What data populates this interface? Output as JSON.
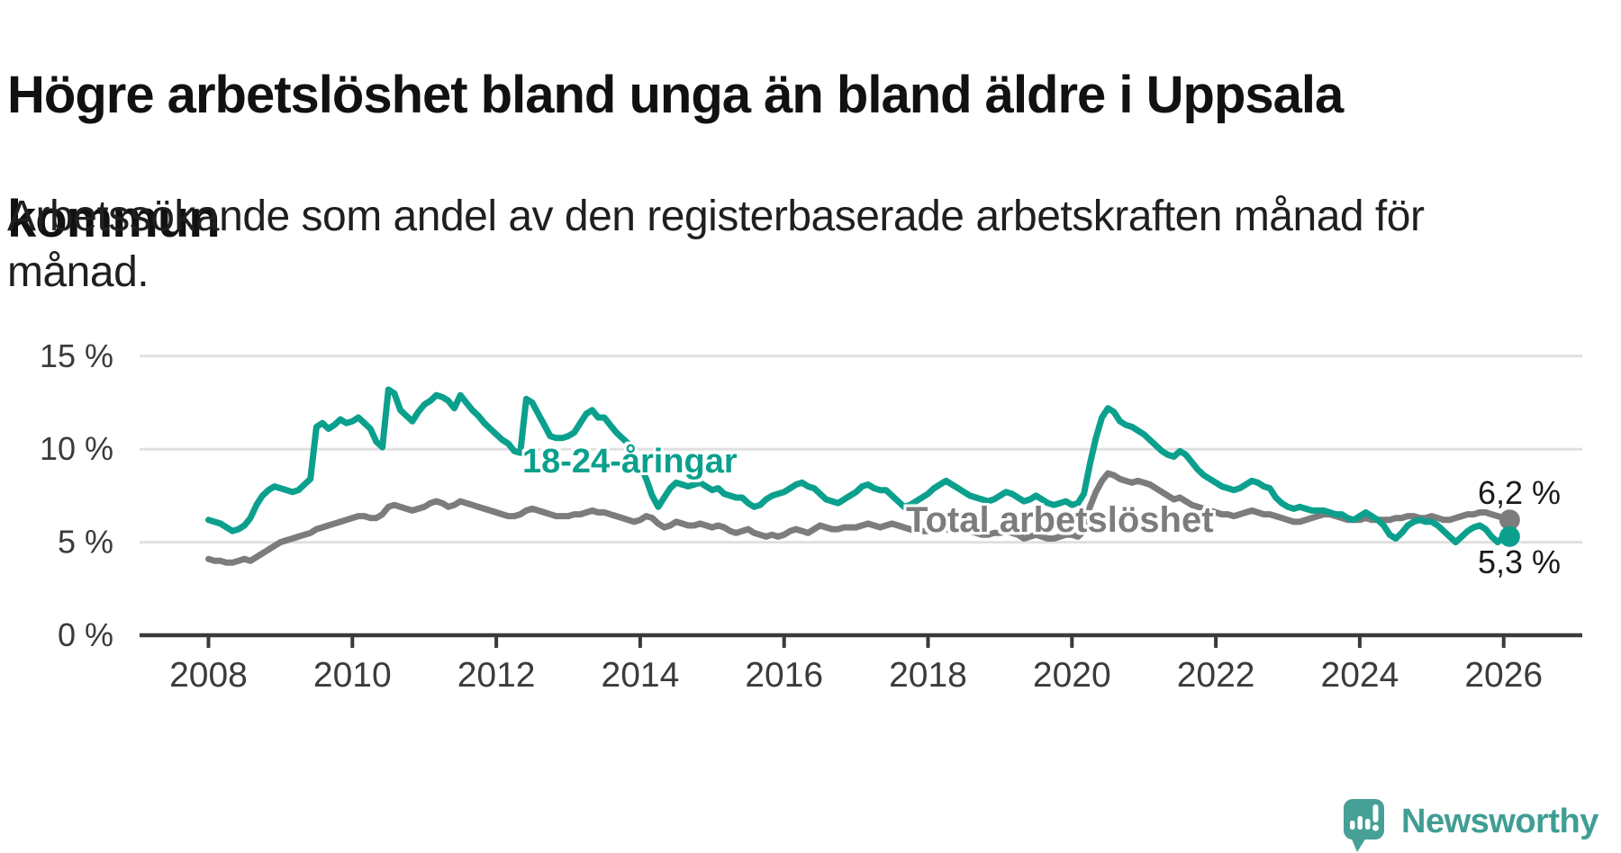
{
  "page": {
    "title_lines": [
      "Högre arbetslöshet bland unga än bland äldre i Uppsala",
      "kommun"
    ],
    "subtitle_lines": [
      "Arbetssökande som andel av den registerbaserade arbetskraften månad för",
      "månad."
    ]
  },
  "chart_data": {
    "type": "line",
    "x_unit": "month",
    "x_start": "2008-01",
    "x_end": "2026-02",
    "ylim": [
      0,
      16
    ],
    "grid": "horizontal",
    "legend_position": "inline-labels",
    "y_ticks": [
      {
        "value": 0,
        "label": "0 %"
      },
      {
        "value": 5,
        "label": "5 %"
      },
      {
        "value": 10,
        "label": "10 %"
      },
      {
        "value": 15,
        "label": "15 %"
      }
    ],
    "x_ticks": [
      {
        "value": 2008,
        "label": "2008"
      },
      {
        "value": 2010,
        "label": "2010"
      },
      {
        "value": 2012,
        "label": "2012"
      },
      {
        "value": 2014,
        "label": "2014"
      },
      {
        "value": 2016,
        "label": "2016"
      },
      {
        "value": 2018,
        "label": "2018"
      },
      {
        "value": 2020,
        "label": "2020"
      },
      {
        "value": 2022,
        "label": "2022"
      },
      {
        "value": 2024,
        "label": "2024"
      },
      {
        "value": 2026,
        "label": "2026"
      }
    ],
    "series": [
      {
        "name": "Total arbetslöshet",
        "color": "#7c7c7c",
        "end_value_label": "6,2 %",
        "values": [
          4.1,
          4.0,
          4.0,
          3.9,
          3.9,
          4.0,
          4.1,
          4.0,
          4.2,
          4.4,
          4.6,
          4.8,
          5.0,
          5.1,
          5.2,
          5.3,
          5.4,
          5.5,
          5.7,
          5.8,
          5.9,
          6.0,
          6.1,
          6.2,
          6.3,
          6.4,
          6.4,
          6.3,
          6.3,
          6.5,
          6.9,
          7.0,
          6.9,
          6.8,
          6.7,
          6.8,
          6.9,
          7.1,
          7.2,
          7.1,
          6.9,
          7.0,
          7.2,
          7.1,
          7.0,
          6.9,
          6.8,
          6.7,
          6.6,
          6.5,
          6.4,
          6.4,
          6.5,
          6.7,
          6.8,
          6.7,
          6.6,
          6.5,
          6.4,
          6.4,
          6.4,
          6.5,
          6.5,
          6.6,
          6.7,
          6.6,
          6.6,
          6.5,
          6.4,
          6.3,
          6.2,
          6.1,
          6.2,
          6.4,
          6.3,
          6.0,
          5.8,
          5.9,
          6.1,
          6.0,
          5.9,
          5.9,
          6.0,
          5.9,
          5.8,
          5.9,
          5.8,
          5.6,
          5.5,
          5.6,
          5.7,
          5.5,
          5.4,
          5.3,
          5.4,
          5.3,
          5.4,
          5.6,
          5.7,
          5.6,
          5.5,
          5.7,
          5.9,
          5.8,
          5.7,
          5.7,
          5.8,
          5.8,
          5.8,
          5.9,
          6.0,
          5.9,
          5.8,
          5.9,
          6.0,
          5.9,
          5.8,
          5.7,
          5.6,
          5.6,
          5.6,
          5.7,
          5.8,
          5.7,
          5.6,
          5.6,
          5.7,
          5.6,
          5.5,
          5.4,
          5.4,
          5.5,
          5.5,
          5.6,
          5.5,
          5.4,
          5.2,
          5.3,
          5.4,
          5.3,
          5.2,
          5.2,
          5.3,
          5.4,
          5.4,
          5.3,
          5.6,
          6.9,
          7.7,
          8.3,
          8.7,
          8.6,
          8.4,
          8.3,
          8.2,
          8.3,
          8.2,
          8.1,
          7.9,
          7.7,
          7.5,
          7.3,
          7.4,
          7.2,
          7.0,
          6.9,
          6.8,
          6.7,
          6.6,
          6.5,
          6.5,
          6.4,
          6.5,
          6.6,
          6.7,
          6.6,
          6.5,
          6.5,
          6.4,
          6.3,
          6.2,
          6.1,
          6.1,
          6.2,
          6.3,
          6.4,
          6.5,
          6.5,
          6.4,
          6.3,
          6.2,
          6.2,
          6.2,
          6.3,
          6.2,
          6.2,
          6.2,
          6.2,
          6.3,
          6.3,
          6.4,
          6.4,
          6.3,
          6.3,
          6.4,
          6.3,
          6.2,
          6.2,
          6.3,
          6.4,
          6.5,
          6.5,
          6.6,
          6.6,
          6.5,
          6.4,
          6.3,
          6.2
        ]
      },
      {
        "name": "18-24-åringar",
        "color": "#0ba08d",
        "end_value_label": "5,3 %",
        "values": [
          6.2,
          6.1,
          6.0,
          5.8,
          5.6,
          5.7,
          5.9,
          6.3,
          7.0,
          7.5,
          7.8,
          8.0,
          7.9,
          7.8,
          7.7,
          7.8,
          8.1,
          8.4,
          11.2,
          11.4,
          11.1,
          11.3,
          11.6,
          11.4,
          11.5,
          11.7,
          11.4,
          11.1,
          10.4,
          10.1,
          13.2,
          13.0,
          12.1,
          11.8,
          11.5,
          12.0,
          12.4,
          12.6,
          12.9,
          12.8,
          12.6,
          12.2,
          12.9,
          12.5,
          12.1,
          11.8,
          11.4,
          11.1,
          10.8,
          10.5,
          10.3,
          9.9,
          9.8,
          12.7,
          12.5,
          11.9,
          11.3,
          10.7,
          10.6,
          10.6,
          10.7,
          10.9,
          11.4,
          11.9,
          12.1,
          11.7,
          11.7,
          11.3,
          10.9,
          10.6,
          10.3,
          9.8,
          9.1,
          8.4,
          7.5,
          6.9,
          7.4,
          7.9,
          8.2,
          8.1,
          8.0,
          8.1,
          8.2,
          8.0,
          7.8,
          7.9,
          7.6,
          7.5,
          7.4,
          7.4,
          7.1,
          6.9,
          7.0,
          7.3,
          7.5,
          7.6,
          7.7,
          7.9,
          8.1,
          8.2,
          8.0,
          7.9,
          7.6,
          7.3,
          7.2,
          7.1,
          7.3,
          7.5,
          7.7,
          8.0,
          8.1,
          7.9,
          7.8,
          7.8,
          7.5,
          7.2,
          6.9,
          7.0,
          7.2,
          7.4,
          7.6,
          7.9,
          8.1,
          8.3,
          8.1,
          7.9,
          7.7,
          7.5,
          7.4,
          7.3,
          7.2,
          7.3,
          7.5,
          7.7,
          7.6,
          7.4,
          7.2,
          7.3,
          7.5,
          7.3,
          7.1,
          7.0,
          7.1,
          7.2,
          7.0,
          7.1,
          7.6,
          9.2,
          10.6,
          11.7,
          12.2,
          12.0,
          11.5,
          11.3,
          11.2,
          11.0,
          10.8,
          10.5,
          10.2,
          9.9,
          9.7,
          9.6,
          9.9,
          9.7,
          9.3,
          8.9,
          8.6,
          8.4,
          8.2,
          8.0,
          7.9,
          7.8,
          7.9,
          8.1,
          8.3,
          8.2,
          8.0,
          7.9,
          7.4,
          7.1,
          6.9,
          6.8,
          6.9,
          6.8,
          6.7,
          6.7,
          6.7,
          6.6,
          6.5,
          6.5,
          6.3,
          6.2,
          6.4,
          6.6,
          6.4,
          6.2,
          5.9,
          5.4,
          5.2,
          5.5,
          5.9,
          6.1,
          6.2,
          6.1,
          6.1,
          5.9,
          5.6,
          5.3,
          5.0,
          5.3,
          5.6,
          5.8,
          5.9,
          5.7,
          5.3,
          5.0,
          5.3,
          5.3
        ]
      }
    ],
    "style": {
      "gridline_color": "#e0e0e0",
      "axis_color": "#3a3a3a",
      "tick_label_color": "#3b3b3b",
      "line_width": 7,
      "end_dot_radius": 11.5
    }
  },
  "branding": {
    "logo_text": "Newsworthy",
    "logo_icon": "newsworthy-speech-bubble-chart-icon",
    "logo_color": "#47a096"
  }
}
